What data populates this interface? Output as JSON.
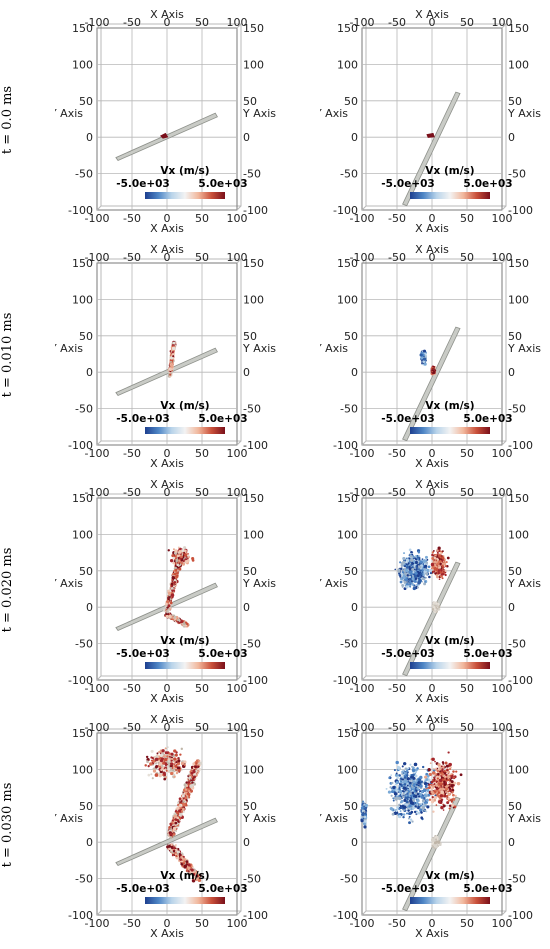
{
  "rows": [
    {
      "time_label": "t = 0.0 ms",
      "stage": 0
    },
    {
      "time_label": "t = 0.010 ms",
      "stage": 1
    },
    {
      "time_label": "t = 0.020 ms",
      "stage": 2
    },
    {
      "time_label": "t = 0.030 ms",
      "stage": 3
    }
  ],
  "axes": {
    "x_axis_title": "X Axis",
    "y_axis_title": "Y Axis",
    "x_ticks": [
      "-100",
      "-50",
      "0",
      "50",
      "100"
    ],
    "y_ticks": [
      "150",
      "100",
      "50",
      "0",
      "-50",
      "-100"
    ]
  },
  "colorbar": {
    "title": "Vx (m/s)",
    "min_label": "-5.0e+03",
    "max_label": "5.0e+03",
    "colors": [
      "#1d3f8f",
      "#4f86c6",
      "#b9d4ea",
      "#f3f3f3",
      "#f1b79c",
      "#c9503a",
      "#7a0f1a"
    ]
  },
  "colors": {
    "plate": "#c9cbc6",
    "plate_edge": "#8e918b",
    "grid": "#b8b8b8",
    "frame": "#7a7a7a"
  }
}
